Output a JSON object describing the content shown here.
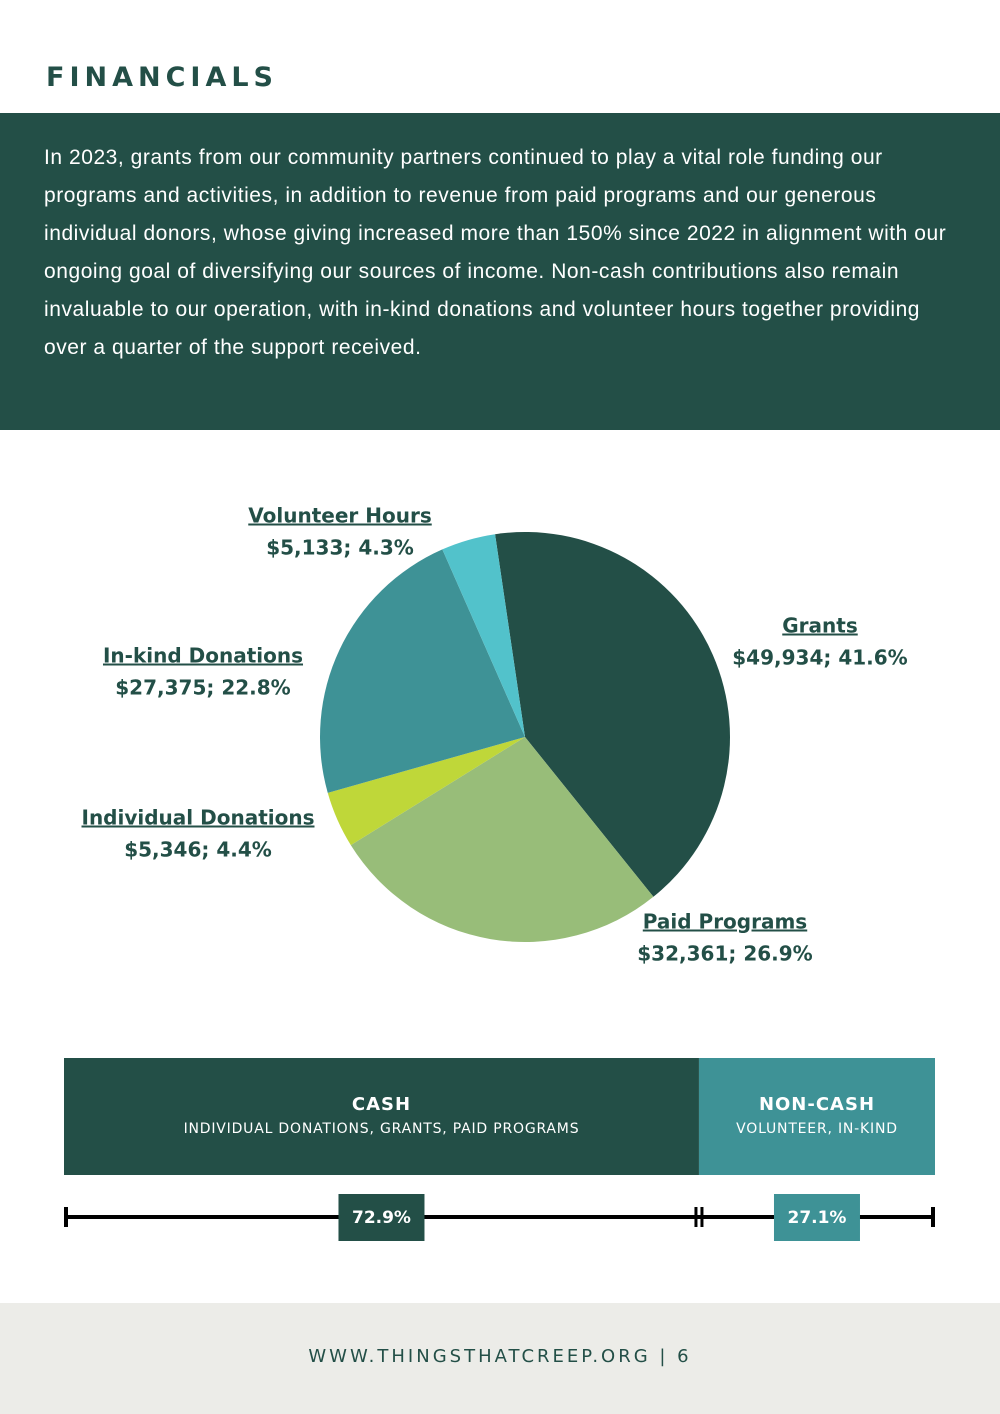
{
  "header": {
    "title": "FINANCIALS"
  },
  "intro": "In 2023, grants from our community partners continued to play a vital role funding our programs and activities, in addition to revenue from paid programs and our generous individual donors, whose giving increased more than 150% since 2022 in alignment with our ongoing goal of diversifying our sources of income. Non-cash contributions also remain invaluable to our operation, with in-kind donations and volunteer hours together providing over a quarter of the support received.",
  "chart_data": [
    {
      "type": "pie",
      "categories": [
        "Grants",
        "Paid Programs",
        "Individual Donations",
        "In-kind Donations",
        "Volunteer Hours"
      ],
      "values": [
        49934,
        32361,
        5346,
        27375,
        5133
      ],
      "value_labels": [
        "$49,934; 41.6%",
        "$32,361; 26.9%",
        "$5,346; 4.4%",
        "$27,375; 22.8%",
        "$5,133; 4.3%"
      ],
      "colors": [
        "#234f47",
        "#98bd79",
        "#bfd739",
        "#3e9296",
        "#52c2cb"
      ]
    },
    {
      "type": "stacked-bar",
      "series": [
        {
          "name": "CASH",
          "description": "INDIVIDUAL DONATIONS, GRANTS, PAID PROGRAMS",
          "color": "#234f47",
          "values": [
            72.9
          ],
          "value_labels": [
            "72.9%"
          ]
        },
        {
          "name": "NON-CASH",
          "description": "VOLUNTEER, IN-KIND",
          "color": "#3e9296",
          "values": [
            27.1
          ],
          "value_labels": [
            "27.1%"
          ]
        }
      ]
    }
  ],
  "footer": "WWW.THINGSTHATCREEP.ORG | 6"
}
